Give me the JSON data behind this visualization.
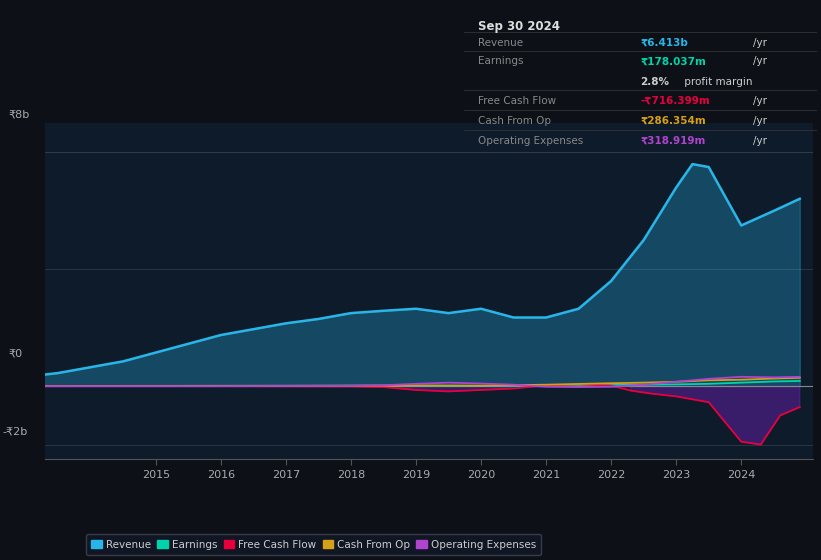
{
  "bg_color": "#0d1117",
  "plot_bg_color": "#0d1b2a",
  "y_label_8b": "₹8b",
  "y_label_0": "₹0",
  "y_label_neg2b": "-₹2b",
  "x_ticks": [
    2015,
    2016,
    2017,
    2018,
    2019,
    2020,
    2021,
    2022,
    2023,
    2024
  ],
  "ylim_low": -2500000000.0,
  "ylim_high": 9000000000.0,
  "revenue_color": "#29b5e8",
  "earnings_color": "#00d4aa",
  "fcf_color": "#e8003d",
  "cashfromop_color": "#d4a017",
  "opex_color": "#b044cc",
  "info_date": "Sep 30 2024",
  "info_revenue_label": "Revenue",
  "info_revenue_val": "₹6.413b",
  "info_revenue_color": "#29b5e8",
  "info_earnings_label": "Earnings",
  "info_earnings_val": "₹178.037m",
  "info_earnings_color": "#00d4aa",
  "info_margin": "2.8%",
  "info_margin_suffix": " profit margin",
  "info_fcf_label": "Free Cash Flow",
  "info_fcf_val": "-₹716.399m",
  "info_fcf_color": "#e8003d",
  "info_cop_label": "Cash From Op",
  "info_cop_val": "₹286.354m",
  "info_cop_color": "#d4a017",
  "info_opex_label": "Operating Expenses",
  "info_opex_val": "₹318.919m",
  "info_opex_color": "#b044cc",
  "revenue_x": [
    2013.0,
    2013.5,
    2014.0,
    2014.5,
    2015.0,
    2015.5,
    2016.0,
    2016.5,
    2017.0,
    2017.5,
    2018.0,
    2018.5,
    2019.0,
    2019.5,
    2020.0,
    2020.5,
    2021.0,
    2021.5,
    2022.0,
    2022.5,
    2023.0,
    2023.25,
    2023.5,
    2023.75,
    2024.0,
    2024.5,
    2024.9
  ],
  "revenue_y": [
    320000000.0,
    450000000.0,
    650000000.0,
    850000000.0,
    1150000000.0,
    1450000000.0,
    1750000000.0,
    1950000000.0,
    2150000000.0,
    2300000000.0,
    2500000000.0,
    2580000000.0,
    2650000000.0,
    2500000000.0,
    2650000000.0,
    2350000000.0,
    2350000000.0,
    2650000000.0,
    3600000000.0,
    5000000000.0,
    6800000000.0,
    7600000000.0,
    7500000000.0,
    6500000000.0,
    5500000000.0,
    6000000000.0,
    6413000000.0
  ],
  "earnings_x": [
    2013.0,
    2014.0,
    2015.0,
    2016.0,
    2017.0,
    2018.0,
    2019.0,
    2019.5,
    2020.0,
    2020.5,
    2021.0,
    2021.5,
    2022.0,
    2022.5,
    2023.0,
    2023.5,
    2024.0,
    2024.5,
    2024.9
  ],
  "earnings_y": [
    5000000.0,
    8000000.0,
    10000000.0,
    12000000.0,
    15000000.0,
    18000000.0,
    20000000.0,
    15000000.0,
    10000000.0,
    15000000.0,
    20000000.0,
    30000000.0,
    40000000.0,
    50000000.0,
    60000000.0,
    80000000.0,
    120000000.0,
    160000000.0,
    178000000.0
  ],
  "fcf_x": [
    2013.0,
    2014.0,
    2015.0,
    2016.0,
    2017.0,
    2018.0,
    2018.5,
    2019.0,
    2019.5,
    2020.0,
    2020.5,
    2021.0,
    2021.5,
    2022.0,
    2022.3,
    2022.6,
    2023.0,
    2023.5,
    2024.0,
    2024.3,
    2024.6,
    2024.9
  ],
  "fcf_y": [
    0,
    0,
    0,
    0,
    -5000000.0,
    -10000000.0,
    -30000000.0,
    -130000000.0,
    -180000000.0,
    -130000000.0,
    -80000000.0,
    30000000.0,
    60000000.0,
    20000000.0,
    -150000000.0,
    -250000000.0,
    -350000000.0,
    -550000000.0,
    -1900000000.0,
    -2000000000.0,
    -1000000000.0,
    -716000000.0
  ],
  "cashfromop_x": [
    2013.0,
    2014.0,
    2015.0,
    2016.0,
    2017.0,
    2018.0,
    2019.0,
    2020.0,
    2021.0,
    2022.0,
    2022.5,
    2023.0,
    2023.5,
    2024.0,
    2024.5,
    2024.9
  ],
  "cashfromop_y": [
    5000000.0,
    8000000.0,
    8000000.0,
    10000000.0,
    10000000.0,
    15000000.0,
    20000000.0,
    15000000.0,
    50000000.0,
    100000000.0,
    120000000.0,
    150000000.0,
    200000000.0,
    220000000.0,
    260000000.0,
    286000000.0
  ],
  "opex_x": [
    2013.0,
    2014.0,
    2015.0,
    2016.0,
    2017.0,
    2018.0,
    2018.5,
    2019.0,
    2019.5,
    2020.0,
    2020.5,
    2021.0,
    2021.5,
    2022.0,
    2022.5,
    2023.0,
    2023.5,
    2024.0,
    2024.5,
    2024.9
  ],
  "opex_y": [
    0,
    0,
    0,
    0,
    5000000.0,
    10000000.0,
    30000000.0,
    80000000.0,
    120000000.0,
    90000000.0,
    50000000.0,
    -20000000.0,
    -30000000.0,
    -20000000.0,
    50000000.0,
    150000000.0,
    250000000.0,
    320000000.0,
    300000000.0,
    319000000.0
  ],
  "legend_labels": [
    "Revenue",
    "Earnings",
    "Free Cash Flow",
    "Cash From Op",
    "Operating Expenses"
  ],
  "legend_colors": [
    "#29b5e8",
    "#00d4aa",
    "#e8003d",
    "#d4a017",
    "#b044cc"
  ]
}
